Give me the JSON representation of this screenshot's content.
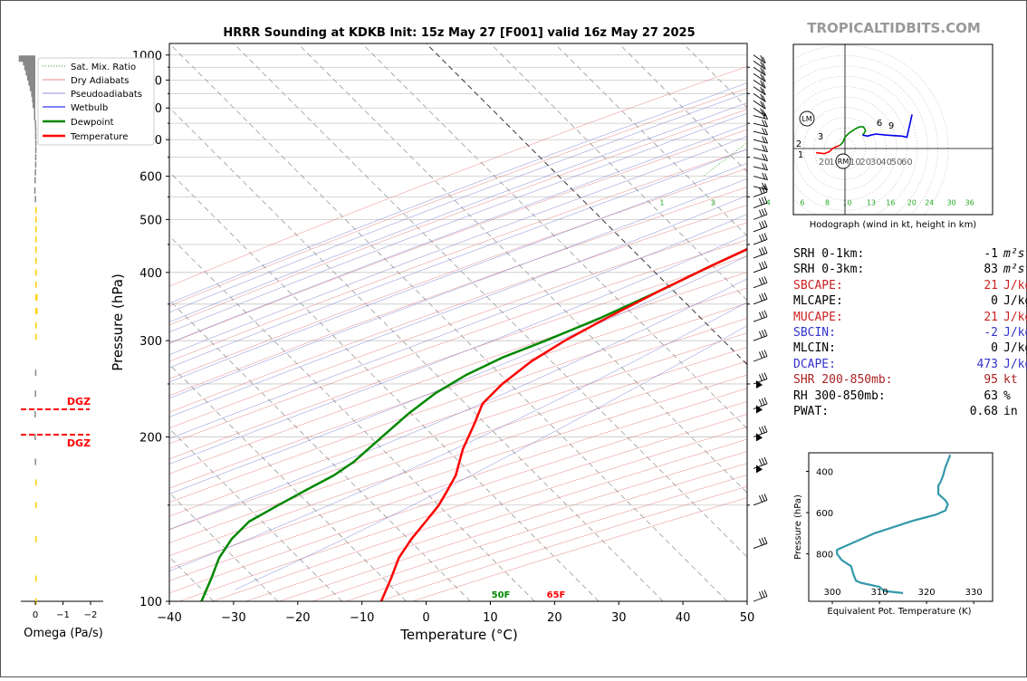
{
  "header": {
    "title": "HRRR Sounding at KDKB Init: 15z May 27 [F001] valid 16z May 27 2025",
    "site_credit": "TROPICALTIDBITS.COM"
  },
  "colors": {
    "temperature": "#ff0000",
    "dewpoint": "#008800",
    "wetbulb": "#0000ee",
    "dry_adiabat": "#dd6666",
    "moist_adiabat": "#6666cc",
    "mixing_ratio": "#22aa22",
    "isotherm": "#888888",
    "omega_up": "#ffd000",
    "omega_down": "#888888",
    "hodo_low": "#ff0000",
    "hodo_mid": "#008800",
    "hodo_high": "#0000ee",
    "theta_e": "#3399aa",
    "cape_label": "#cc2222",
    "cin_label": "#3333cc"
  },
  "chart_data": [
    {
      "type": "line",
      "name": "skewt",
      "xlabel": "Temperature (°C)",
      "ylabel": "Pressure (hPa)",
      "xlim": [
        -40,
        50
      ],
      "ylim": [
        1050,
        100
      ],
      "x_ticks": [
        "−40",
        "−30",
        "−20",
        "−10",
        "0",
        "10",
        "20",
        "30",
        "40",
        "50"
      ],
      "y_ticks": [
        "100",
        "200",
        "300",
        "400",
        "500",
        "600",
        "700",
        "800",
        "900",
        "1000"
      ],
      "legend": {
        "position": "top-left",
        "entries": [
          "Sat. Mix. Ratio",
          "Dry Adiabats",
          "Pseudoadiabats",
          "Wetbulb",
          "Dewpoint",
          "Temperature"
        ]
      },
      "mixing_ratio_labels": [
        "1",
        "2",
        "4",
        "6",
        "8",
        "10",
        "13",
        "16",
        "20",
        "24",
        "30",
        "36"
      ],
      "surface_labels": {
        "dewpoint": "50F",
        "temperature": "65F"
      },
      "series": [
        {
          "name": "Temperature",
          "points": [
            [
              18.5,
              1000
            ],
            [
              16,
              970
            ],
            [
              14.5,
              940
            ],
            [
              13,
              910
            ],
            [
              11.5,
              880
            ],
            [
              10.5,
              850
            ],
            [
              10,
              820
            ],
            [
              10,
              800
            ],
            [
              9,
              760
            ],
            [
              8,
              720
            ],
            [
              7,
              660
            ],
            [
              6,
              620
            ],
            [
              5.5,
              590
            ],
            [
              4.5,
              560
            ],
            [
              3,
              530
            ],
            [
              -1,
              490
            ],
            [
              -4,
              450
            ],
            [
              -8,
              410
            ],
            [
              -12,
              370
            ],
            [
              -16,
              330
            ],
            [
              -19,
              300
            ],
            [
              -21,
              275
            ],
            [
              -22,
              250
            ],
            [
              -22,
              230
            ],
            [
              -20,
              210
            ],
            [
              -18,
              190
            ],
            [
              -15,
              170
            ],
            [
              -14,
              160
            ],
            [
              -13,
              150
            ],
            [
              -12.5,
              140
            ],
            [
              -12,
              130
            ],
            [
              -11,
              120
            ],
            [
              -9,
              110
            ],
            [
              -7,
              100
            ]
          ]
        },
        {
          "name": "Dewpoint",
          "points": [
            [
              11.5,
              1000
            ],
            [
              9.5,
              970
            ],
            [
              9,
              950
            ],
            [
              7,
              920
            ],
            [
              3,
              890
            ],
            [
              3,
              880
            ],
            [
              2.5,
              860
            ],
            [
              1.5,
              850
            ],
            [
              -1,
              830
            ],
            [
              -9,
              800
            ],
            [
              -13,
              775
            ],
            [
              -12,
              765
            ],
            [
              -8,
              740
            ],
            [
              -6,
              710
            ],
            [
              -4,
              680
            ],
            [
              -2,
              650
            ],
            [
              2,
              620
            ],
            [
              5,
              600
            ],
            [
              7,
              580
            ],
            [
              5.5,
              550
            ],
            [
              3,
              520
            ],
            [
              0,
              490
            ],
            [
              -4,
              450
            ],
            [
              -8,
              410
            ],
            [
              -12,
              370
            ],
            [
              -17,
              330
            ],
            [
              -22,
              300
            ],
            [
              -26,
              280
            ],
            [
              -29,
              260
            ],
            [
              -31,
              240
            ],
            [
              -32,
              220
            ],
            [
              -32.5,
              200
            ],
            [
              -33,
              180
            ],
            [
              -34,
              170
            ],
            [
              -36,
              160
            ],
            [
              -38,
              150
            ],
            [
              -40,
              140
            ],
            [
              -40,
              130
            ],
            [
              -39,
              120
            ],
            [
              -37,
              110
            ],
            [
              -35,
              100
            ]
          ]
        },
        {
          "name": "Wetbulb",
          "points": [
            [
              14,
              1000
            ],
            [
              12.5,
              970
            ],
            [
              10.5,
              940
            ],
            [
              8,
              910
            ],
            [
              5.5,
              880
            ],
            [
              3,
              850
            ],
            [
              1,
              820
            ],
            [
              0,
              800
            ],
            [
              -1,
              780
            ],
            [
              -1,
              760
            ],
            [
              0,
              730
            ],
            [
              1,
              700
            ],
            [
              2.5,
              660
            ],
            [
              4,
              620
            ],
            [
              5,
              590
            ],
            [
              4.5,
              560
            ],
            [
              2.8,
              530
            ],
            [
              -1,
              490
            ],
            [
              -4,
              450
            ],
            [
              -8,
              410
            ],
            [
              -12,
              370
            ],
            [
              -16,
              330
            ]
          ]
        }
      ]
    },
    {
      "type": "line",
      "name": "hodograph",
      "caption": "Hodograph (wind in kt, height in km)",
      "xlim": [
        -25,
        70
      ],
      "ylim": [
        -30,
        45
      ],
      "ring_labels": [
        "20",
        "10",
        "RM",
        "10",
        "20",
        "30",
        "40",
        "50",
        "60"
      ],
      "height_labels": [
        "1",
        "2",
        "3",
        "6",
        "9"
      ],
      "markers": [
        "LM",
        "RM"
      ],
      "series": [
        {
          "name": "0-3 km",
          "points": [
            [
              -28,
              -4
            ],
            [
              -20,
              -5
            ],
            [
              -15,
              -3
            ],
            [
              -12,
              0
            ],
            [
              -8,
              2
            ],
            [
              -5,
              3
            ]
          ]
        },
        {
          "name": "3-6 km",
          "points": [
            [
              -5,
              3
            ],
            [
              -2,
              6
            ],
            [
              0,
              11
            ],
            [
              4,
              15
            ],
            [
              10,
              19
            ],
            [
              14,
              21
            ],
            [
              18,
              21
            ],
            [
              19,
              19
            ],
            [
              20,
              17
            ],
            [
              18,
              14
            ],
            [
              17,
              13
            ]
          ]
        },
        {
          "name": "6-9 km",
          "points": [
            [
              17,
              13
            ],
            [
              22,
              12
            ],
            [
              25,
              13
            ],
            [
              30,
              14
            ],
            [
              40,
              13
            ],
            [
              55,
              12
            ],
            [
              60,
              11
            ],
            [
              65,
              33
            ]
          ]
        }
      ]
    },
    {
      "type": "line",
      "name": "theta_e",
      "xlabel": "Equivalent Pot. Temperature (K)",
      "ylabel": "Pressure (hPa)",
      "xlim": [
        295,
        334
      ],
      "ylim": [
        1030,
        310
      ],
      "x_ticks": [
        "300",
        "310",
        "320",
        "330"
      ],
      "y_ticks": [
        "400",
        "600",
        "800"
      ],
      "points": [
        [
          315,
          990
        ],
        [
          311,
          980
        ],
        [
          310,
          960
        ],
        [
          306,
          940
        ],
        [
          305,
          930
        ],
        [
          304.5,
          900
        ],
        [
          304,
          860
        ],
        [
          302,
          830
        ],
        [
          301,
          800
        ],
        [
          301,
          780
        ],
        [
          303,
          760
        ],
        [
          309,
          700
        ],
        [
          317,
          640
        ],
        [
          322,
          610
        ],
        [
          324,
          590
        ],
        [
          324.5,
          560
        ],
        [
          324,
          540
        ],
        [
          322.5,
          510
        ],
        [
          322.5,
          470
        ],
        [
          323,
          450
        ],
        [
          323.5,
          420
        ],
        [
          324,
          380
        ],
        [
          324.5,
          350
        ],
        [
          325,
          320
        ]
      ]
    },
    {
      "type": "bar",
      "name": "omega",
      "xlabel": "Omega (Pa/s)",
      "x_ticks": [
        "0",
        "−1",
        "−2"
      ],
      "xlim": [
        0.4,
        -2.1
      ],
      "dgz_label": "DGZ",
      "dgz_bounds": [
        465,
        520
      ],
      "bars": [
        [
          0.6,
          985
        ],
        [
          0.45,
          970
        ],
        [
          0.4,
          950
        ],
        [
          0.35,
          930
        ],
        [
          0.3,
          910
        ],
        [
          0.25,
          890
        ],
        [
          0.2,
          870
        ],
        [
          0.15,
          850
        ],
        [
          0.12,
          830
        ],
        [
          0.1,
          810
        ],
        [
          0.05,
          790
        ],
        [
          0.05,
          770
        ],
        [
          0.02,
          750
        ],
        [
          0.01,
          730
        ],
        [
          0.01,
          710
        ],
        [
          0.005,
          690
        ],
        [
          0.005,
          670
        ],
        [
          0.01,
          650
        ],
        [
          0.01,
          630
        ],
        [
          0.02,
          610
        ],
        [
          0.03,
          590
        ],
        [
          0.04,
          565
        ],
        [
          0.02,
          545
        ],
        [
          -0.02,
          520
        ],
        [
          -0.02,
          500
        ],
        [
          -0.02,
          480
        ],
        [
          -0.02,
          460
        ],
        [
          -0.03,
          440
        ],
        [
          -0.03,
          420
        ],
        [
          -0.04,
          400
        ],
        [
          -0.05,
          380
        ],
        [
          -0.08,
          360
        ],
        [
          -0.08,
          340
        ],
        [
          -0.05,
          320
        ],
        [
          -0.03,
          305
        ],
        [
          0.01,
          262
        ],
        [
          0.02,
          240
        ],
        [
          0.03,
          220
        ],
        [
          0.03,
          200
        ],
        [
          0.02,
          180
        ],
        [
          -0.02,
          165
        ],
        [
          -0.02,
          150
        ],
        [
          -0.03,
          130
        ],
        [
          -0.01,
          110
        ],
        [
          -0.005,
          100
        ]
      ]
    }
  ],
  "stats": [
    {
      "label": "SRH 0-1km:",
      "value": "-1",
      "unit": "m²s⁻²",
      "color": "#000000"
    },
    {
      "label": "SRH 0-3km:",
      "value": "83",
      "unit": "m²s⁻²",
      "color": "#000000"
    },
    {
      "label": "SBCAPE:",
      "value": "21",
      "unit": "J/kg",
      "color": "#cc2222"
    },
    {
      "label": "MLCAPE:",
      "value": "0",
      "unit": "J/kg",
      "color": "#000000"
    },
    {
      "label": "MUCAPE:",
      "value": "21",
      "unit": "J/kg",
      "color": "#cc2222"
    },
    {
      "label": "SBCIN:",
      "value": "-2",
      "unit": "J/kg",
      "color": "#3333cc"
    },
    {
      "label": "MLCIN:",
      "value": "0",
      "unit": "J/kg",
      "color": "#000000"
    },
    {
      "label": "DCAPE:",
      "value": "473",
      "unit": "J/kg",
      "color": "#3333cc"
    },
    {
      "label": "SHR 200-850mb:",
      "value": "95",
      "unit": "kt",
      "color": "#aa2222"
    },
    {
      "label": "RH 300-850mb:",
      "value": "63",
      "unit": "%",
      "color": "#000000"
    },
    {
      "label": "PWAT:",
      "value": "0.68",
      "unit": "in",
      "color": "#000000"
    }
  ]
}
